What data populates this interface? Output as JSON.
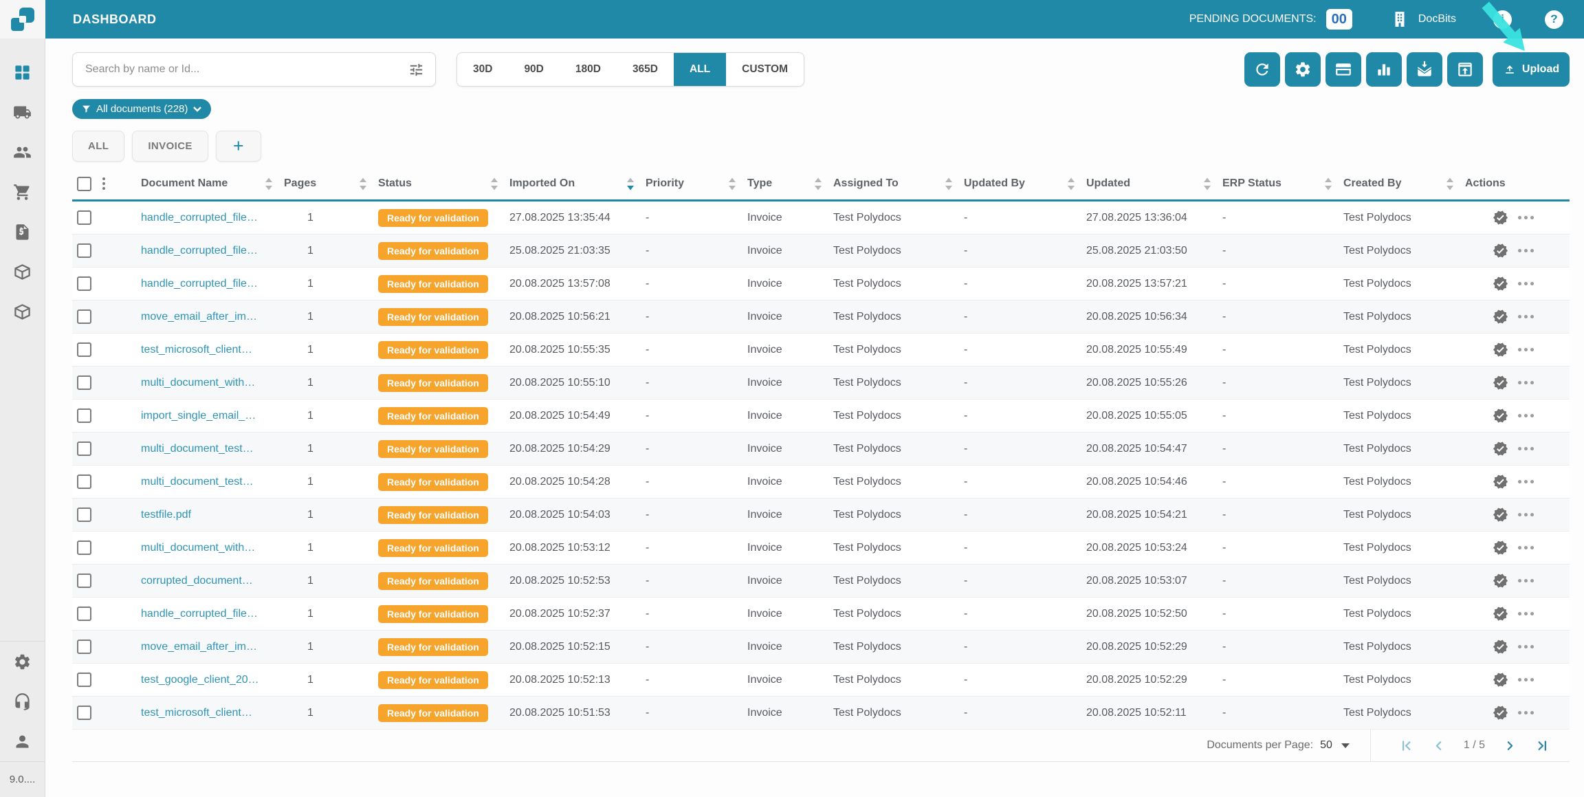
{
  "colors": {
    "accent_teal": "#2189a8",
    "badge_orange": "#f6a42b",
    "count_blue": "#2a6ebb",
    "link_teal": "#2e94b4",
    "cursor_cyan": "#3ae3e0"
  },
  "topbar": {
    "title": "DASHBOARD",
    "pending_label": "PENDING DOCUMENTS:",
    "pending_count": "00",
    "org_name": "DocBits"
  },
  "sidebar": {
    "version": "9.0...."
  },
  "toolbar": {
    "search_placeholder": "Search by name or Id...",
    "date_filters": [
      "30D",
      "90D",
      "180D",
      "365D",
      "ALL",
      "CUSTOM"
    ],
    "active_date_filter": "ALL",
    "upload_label": "Upload"
  },
  "filter_chip": {
    "label": "All documents (228)"
  },
  "tabs": [
    {
      "label": "ALL"
    },
    {
      "label": "INVOICE"
    },
    {
      "label": "+",
      "is_add": true
    }
  ],
  "table": {
    "columns": [
      {
        "label": "Document Name",
        "sort": "none"
      },
      {
        "label": "Pages",
        "sort": "none"
      },
      {
        "label": "Status",
        "sort": "none"
      },
      {
        "label": "Imported On",
        "sort": "desc"
      },
      {
        "label": "Priority",
        "sort": "none"
      },
      {
        "label": "Type",
        "sort": "none"
      },
      {
        "label": "Assigned To",
        "sort": "none"
      },
      {
        "label": "Updated By",
        "sort": "none"
      },
      {
        "label": "Updated",
        "sort": "none"
      },
      {
        "label": "ERP Status",
        "sort": "none"
      },
      {
        "label": "Created By",
        "sort": "none"
      },
      {
        "label": "Actions"
      }
    ],
    "rows": [
      {
        "name": "handle_corrupted_file…",
        "pages": "1",
        "status": "Ready for validation",
        "imported_on": "27.08.2025 13:35:44",
        "priority": "-",
        "type": "Invoice",
        "assigned_to": "Test Polydocs",
        "updated_by": "-",
        "updated": "27.08.2025 13:36:04",
        "erp_status": "-",
        "created_by": "Test Polydocs"
      },
      {
        "name": "handle_corrupted_file…",
        "pages": "1",
        "status": "Ready for validation",
        "imported_on": "25.08.2025 21:03:35",
        "priority": "-",
        "type": "Invoice",
        "assigned_to": "Test Polydocs",
        "updated_by": "-",
        "updated": "25.08.2025 21:03:50",
        "erp_status": "-",
        "created_by": "Test Polydocs"
      },
      {
        "name": "handle_corrupted_file…",
        "pages": "1",
        "status": "Ready for validation",
        "imported_on": "20.08.2025 13:57:08",
        "priority": "-",
        "type": "Invoice",
        "assigned_to": "Test Polydocs",
        "updated_by": "-",
        "updated": "20.08.2025 13:57:21",
        "erp_status": "-",
        "created_by": "Test Polydocs"
      },
      {
        "name": "move_email_after_im…",
        "pages": "1",
        "status": "Ready for validation",
        "imported_on": "20.08.2025 10:56:21",
        "priority": "-",
        "type": "Invoice",
        "assigned_to": "Test Polydocs",
        "updated_by": "-",
        "updated": "20.08.2025 10:56:34",
        "erp_status": "-",
        "created_by": "Test Polydocs"
      },
      {
        "name": "test_microsoft_client…",
        "pages": "1",
        "status": "Ready for validation",
        "imported_on": "20.08.2025 10:55:35",
        "priority": "-",
        "type": "Invoice",
        "assigned_to": "Test Polydocs",
        "updated_by": "-",
        "updated": "20.08.2025 10:55:49",
        "erp_status": "-",
        "created_by": "Test Polydocs"
      },
      {
        "name": "multi_document_with…",
        "pages": "1",
        "status": "Ready for validation",
        "imported_on": "20.08.2025 10:55:10",
        "priority": "-",
        "type": "Invoice",
        "assigned_to": "Test Polydocs",
        "updated_by": "-",
        "updated": "20.08.2025 10:55:26",
        "erp_status": "-",
        "created_by": "Test Polydocs"
      },
      {
        "name": "import_single_email_…",
        "pages": "1",
        "status": "Ready for validation",
        "imported_on": "20.08.2025 10:54:49",
        "priority": "-",
        "type": "Invoice",
        "assigned_to": "Test Polydocs",
        "updated_by": "-",
        "updated": "20.08.2025 10:55:05",
        "erp_status": "-",
        "created_by": "Test Polydocs"
      },
      {
        "name": "multi_document_test…",
        "pages": "1",
        "status": "Ready for validation",
        "imported_on": "20.08.2025 10:54:29",
        "priority": "-",
        "type": "Invoice",
        "assigned_to": "Test Polydocs",
        "updated_by": "-",
        "updated": "20.08.2025 10:54:47",
        "erp_status": "-",
        "created_by": "Test Polydocs"
      },
      {
        "name": "multi_document_test…",
        "pages": "1",
        "status": "Ready for validation",
        "imported_on": "20.08.2025 10:54:28",
        "priority": "-",
        "type": "Invoice",
        "assigned_to": "Test Polydocs",
        "updated_by": "-",
        "updated": "20.08.2025 10:54:46",
        "erp_status": "-",
        "created_by": "Test Polydocs"
      },
      {
        "name": "testfile.pdf",
        "pages": "1",
        "status": "Ready for validation",
        "imported_on": "20.08.2025 10:54:03",
        "priority": "-",
        "type": "Invoice",
        "assigned_to": "Test Polydocs",
        "updated_by": "-",
        "updated": "20.08.2025 10:54:21",
        "erp_status": "-",
        "created_by": "Test Polydocs"
      },
      {
        "name": "multi_document_with…",
        "pages": "1",
        "status": "Ready for validation",
        "imported_on": "20.08.2025 10:53:12",
        "priority": "-",
        "type": "Invoice",
        "assigned_to": "Test Polydocs",
        "updated_by": "-",
        "updated": "20.08.2025 10:53:24",
        "erp_status": "-",
        "created_by": "Test Polydocs"
      },
      {
        "name": "corrupted_document…",
        "pages": "1",
        "status": "Ready for validation",
        "imported_on": "20.08.2025 10:52:53",
        "priority": "-",
        "type": "Invoice",
        "assigned_to": "Test Polydocs",
        "updated_by": "-",
        "updated": "20.08.2025 10:53:07",
        "erp_status": "-",
        "created_by": "Test Polydocs"
      },
      {
        "name": "handle_corrupted_file…",
        "pages": "1",
        "status": "Ready for validation",
        "imported_on": "20.08.2025 10:52:37",
        "priority": "-",
        "type": "Invoice",
        "assigned_to": "Test Polydocs",
        "updated_by": "-",
        "updated": "20.08.2025 10:52:50",
        "erp_status": "-",
        "created_by": "Test Polydocs"
      },
      {
        "name": "move_email_after_im…",
        "pages": "1",
        "status": "Ready for validation",
        "imported_on": "20.08.2025 10:52:15",
        "priority": "-",
        "type": "Invoice",
        "assigned_to": "Test Polydocs",
        "updated_by": "-",
        "updated": "20.08.2025 10:52:29",
        "erp_status": "-",
        "created_by": "Test Polydocs"
      },
      {
        "name": "test_google_client_20…",
        "pages": "1",
        "status": "Ready for validation",
        "imported_on": "20.08.2025 10:52:13",
        "priority": "-",
        "type": "Invoice",
        "assigned_to": "Test Polydocs",
        "updated_by": "-",
        "updated": "20.08.2025 10:52:29",
        "erp_status": "-",
        "created_by": "Test Polydocs"
      },
      {
        "name": "test_microsoft_client…",
        "pages": "1",
        "status": "Ready for validation",
        "imported_on": "20.08.2025 10:51:53",
        "priority": "-",
        "type": "Invoice",
        "assigned_to": "Test Polydocs",
        "updated_by": "-",
        "updated": "20.08.2025 10:52:11",
        "erp_status": "-",
        "created_by": "Test Polydocs"
      }
    ]
  },
  "pagination": {
    "per_page_label": "Documents per Page:",
    "per_page_value": "50",
    "page_indicator": "1 / 5"
  }
}
